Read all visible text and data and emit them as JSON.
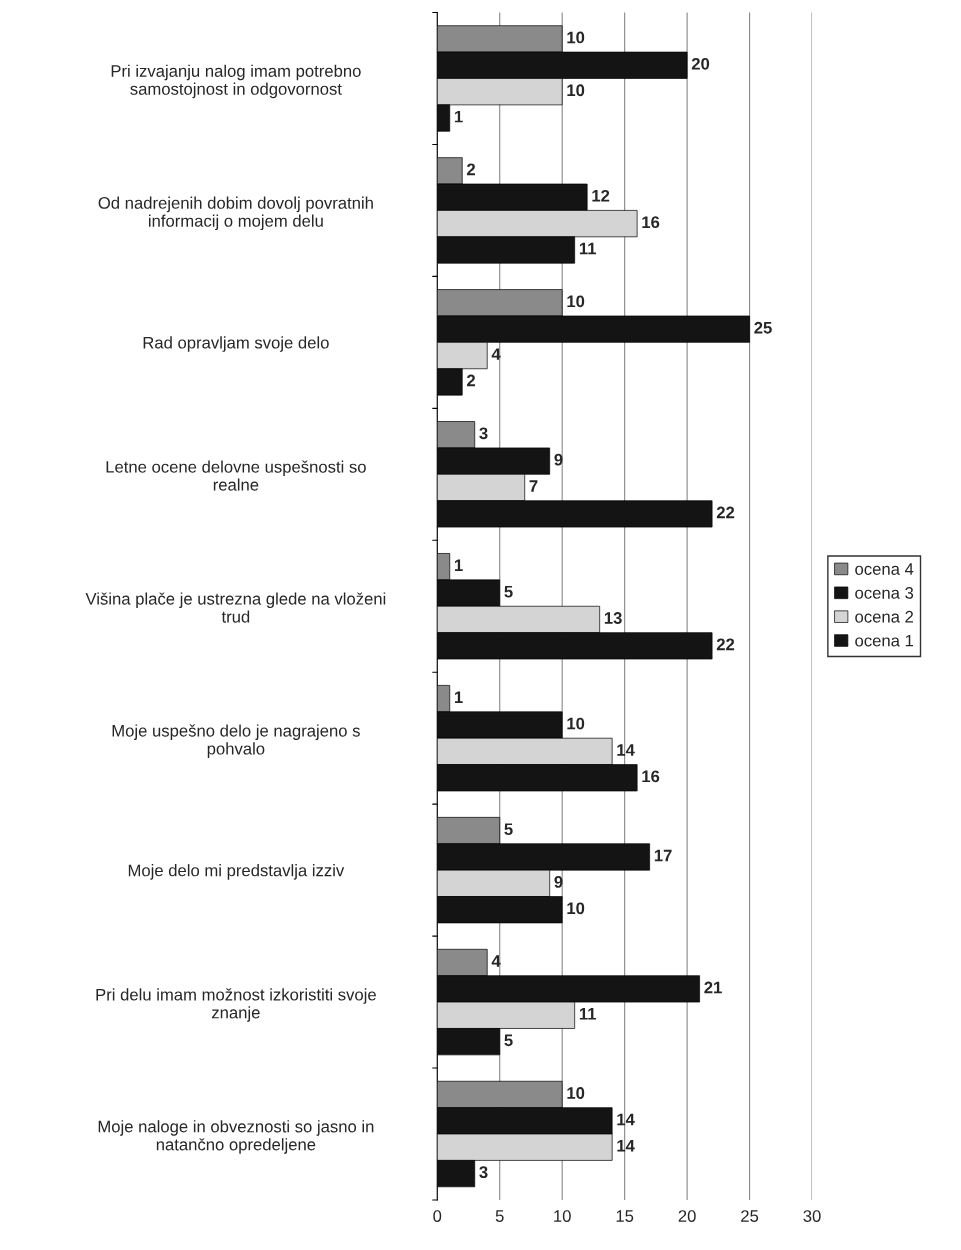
{
  "chart_data": {
    "type": "bar",
    "orientation": "horizontal",
    "categories": [
      "Pri izvajanju nalog imam potrebno\nsamostojnost in odgovornost",
      "Od nadrejenih dobim dovolj povratnih\ninformacij o mojem delu",
      "Rad opravljam svoje delo",
      "Letne ocene delovne uspešnosti so\nrealne",
      "Višina plače je ustrezna glede na vloženi\ntrud",
      "Moje uspešno delo je nagrajeno s\npohvalo",
      "Moje delo mi predstavlja izziv",
      "Pri delu imam možnost izkoristiti svoje\nznanje",
      "Moje naloge in obveznosti so jasno in\nnatančno opredeljene"
    ],
    "series": [
      {
        "name": "ocena 4",
        "color": "#8a8a8a",
        "values": [
          10,
          2,
          10,
          3,
          1,
          1,
          5,
          4,
          10
        ]
      },
      {
        "name": "ocena 3",
        "color": "#141414",
        "values": [
          20,
          12,
          25,
          9,
          5,
          10,
          17,
          21,
          14
        ]
      },
      {
        "name": "ocena 2",
        "color": "#d4d4d4",
        "values": [
          10,
          16,
          4,
          7,
          13,
          14,
          9,
          11,
          14
        ]
      },
      {
        "name": "ocena 1",
        "color": "#141414",
        "values": [
          1,
          11,
          2,
          22,
          22,
          16,
          10,
          5,
          3
        ]
      }
    ],
    "xlim": [
      0,
      30
    ],
    "xticks": [
      0,
      5,
      10,
      15,
      20,
      25,
      30
    ],
    "grid": "x",
    "legend": "right",
    "data_labels": true
  }
}
